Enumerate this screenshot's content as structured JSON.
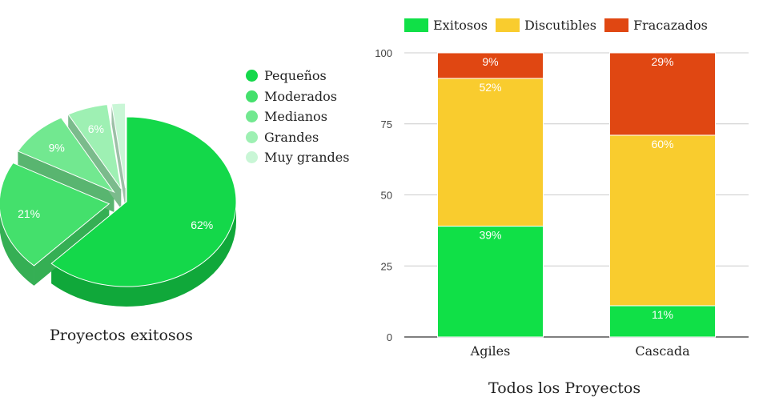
{
  "chart_data": [
    {
      "type": "pie",
      "title": "Proyectos exitosos",
      "slices": [
        {
          "label": "Pequeños",
          "value": 62,
          "label_text": "62%",
          "color": "#14d84a"
        },
        {
          "label": "Moderados",
          "value": 21,
          "label_text": "21%",
          "color": "#44e06c"
        },
        {
          "label": "Medianos",
          "value": 9,
          "label_text": "9%",
          "color": "#72e890"
        },
        {
          "label": "Grandes",
          "value": 6,
          "label_text": "6%",
          "color": "#9ef0b3"
        },
        {
          "label": "Muy grandes",
          "value": 2,
          "label_text": "",
          "color": "#c9f6d6"
        }
      ],
      "legend_position": "right",
      "three_d": true,
      "exploded": true
    },
    {
      "type": "bar",
      "stacked": true,
      "title": "Todos los Proyectos",
      "categories": [
        "Agiles",
        "Cascada"
      ],
      "series": [
        {
          "name": "Exitosos",
          "color": "#10e047",
          "values": [
            39,
            11
          ],
          "labels": [
            "39%",
            "11%"
          ]
        },
        {
          "name": "Discutibles",
          "color": "#f9cc2e",
          "values": [
            52,
            60
          ],
          "labels": [
            "52%",
            "60%"
          ]
        },
        {
          "name": "Fracazados",
          "color": "#e04712",
          "values": [
            9,
            29
          ],
          "labels": [
            "9%",
            "29%"
          ]
        }
      ],
      "ylim": [
        0,
        100
      ],
      "yticks": [
        0,
        25,
        50,
        75,
        100
      ],
      "ytick_labels": [
        "0",
        "25",
        "50",
        "75",
        "100"
      ],
      "grid": true,
      "legend_position": "top-left"
    }
  ]
}
